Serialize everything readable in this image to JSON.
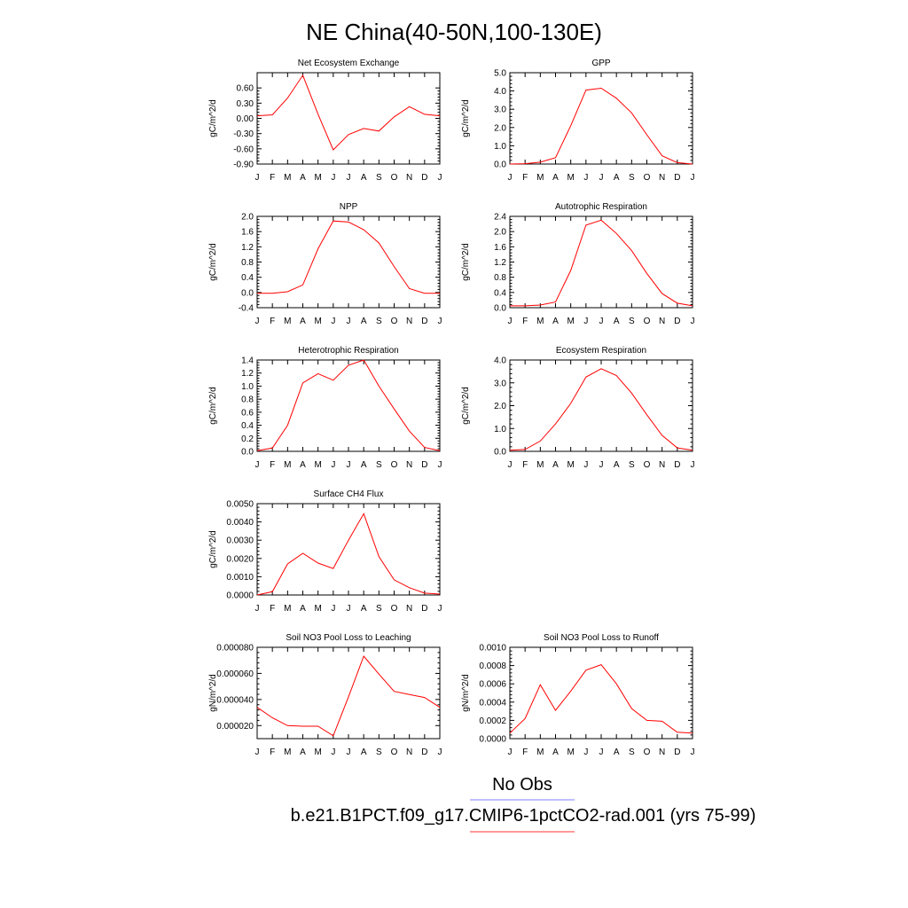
{
  "title": "NE China(40-50N,100-130E)",
  "legend": {
    "obs_label": "No Obs",
    "obs_color": "#7f7fff",
    "model_label": "b.e21.B1PCT.f09_g17.CMIP6-1pctCO2-rad.001 (yrs 75-99)",
    "model_color": "#ff3333"
  },
  "months": [
    "J",
    "F",
    "M",
    "A",
    "M",
    "J",
    "J",
    "A",
    "S",
    "O",
    "N",
    "D",
    "J"
  ],
  "chart_data": [
    {
      "type": "line",
      "title": "Net Ecosystem Exchange",
      "ylabel": "gC/m^2/d",
      "ylim": [
        -0.9,
        0.9
      ],
      "yticks": [
        -0.9,
        -0.6,
        -0.3,
        0.0,
        0.3,
        0.6
      ],
      "yticklabels": [
        "-0.90",
        "-0.60",
        "-0.30",
        "0.00",
        "0.30",
        "0.60"
      ],
      "series": [
        {
          "values": [
            0.05,
            0.07,
            0.4,
            0.85,
            0.08,
            -0.62,
            -0.32,
            -0.2,
            -0.25,
            0.03,
            0.23,
            0.08,
            0.05
          ]
        }
      ]
    },
    {
      "type": "line",
      "title": "GPP",
      "ylabel": "gC/m^2/d",
      "ylim": [
        0.0,
        5.0
      ],
      "yticks": [
        0.0,
        1.0,
        2.0,
        3.0,
        4.0,
        5.0
      ],
      "yticklabels": [
        "0.0",
        "1.0",
        "2.0",
        "3.0",
        "4.0",
        "5.0"
      ],
      "series": [
        {
          "values": [
            0.0,
            0.02,
            0.1,
            0.35,
            2.1,
            4.05,
            4.15,
            3.6,
            2.8,
            1.6,
            0.45,
            0.08,
            0.0
          ]
        }
      ]
    },
    {
      "type": "line",
      "title": "NPP",
      "ylabel": "gC/m^2/d",
      "ylim": [
        -0.4,
        2.0
      ],
      "yticks": [
        -0.4,
        0.0,
        0.4,
        0.8,
        1.2,
        1.6,
        2.0
      ],
      "yticklabels": [
        "-0.4",
        "0.0",
        "0.4",
        "0.8",
        "1.2",
        "1.6",
        "2.0"
      ],
      "series": [
        {
          "values": [
            -0.02,
            -0.02,
            0.02,
            0.2,
            1.15,
            1.88,
            1.85,
            1.65,
            1.3,
            0.68,
            0.1,
            -0.02,
            -0.02
          ]
        }
      ]
    },
    {
      "type": "line",
      "title": "Autotrophic Respiration",
      "ylabel": "gC/m^2/d",
      "ylim": [
        0.0,
        2.4
      ],
      "yticks": [
        0.0,
        0.4,
        0.8,
        1.2,
        1.6,
        2.0,
        2.4
      ],
      "yticklabels": [
        "0.0",
        "0.4",
        "0.8",
        "1.2",
        "1.6",
        "2.0",
        "2.4"
      ],
      "series": [
        {
          "values": [
            0.05,
            0.05,
            0.07,
            0.15,
            0.98,
            2.17,
            2.3,
            1.95,
            1.5,
            0.9,
            0.37,
            0.12,
            0.05
          ]
        }
      ]
    },
    {
      "type": "line",
      "title": "Heterotrophic Respiration",
      "ylabel": "gC/m^2/d",
      "ylim": [
        0.0,
        1.4
      ],
      "yticks": [
        0.0,
        0.2,
        0.4,
        0.6,
        0.8,
        1.0,
        1.2,
        1.4
      ],
      "yticklabels": [
        "0.0",
        "0.2",
        "0.4",
        "0.6",
        "0.8",
        "1.0",
        "1.2",
        "1.4"
      ],
      "series": [
        {
          "values": [
            0.01,
            0.05,
            0.4,
            1.05,
            1.19,
            1.09,
            1.32,
            1.4,
            1.0,
            0.65,
            0.31,
            0.06,
            0.01
          ]
        }
      ]
    },
    {
      "type": "line",
      "title": "Ecosystem Respiration",
      "ylabel": "gC/m^2/d",
      "ylim": [
        0.0,
        4.0
      ],
      "yticks": [
        0.0,
        1.0,
        2.0,
        3.0,
        4.0
      ],
      "yticklabels": [
        "0.0",
        "1.0",
        "2.0",
        "3.0",
        "4.0"
      ],
      "series": [
        {
          "values": [
            0.05,
            0.08,
            0.45,
            1.2,
            2.1,
            3.25,
            3.62,
            3.32,
            2.55,
            1.6,
            0.7,
            0.15,
            0.05
          ]
        }
      ]
    },
    {
      "type": "line",
      "title": "Surface CH4 Flux",
      "ylabel": "gC/m^2/d",
      "ylim": [
        0.0,
        0.005
      ],
      "yticks": [
        0.0,
        0.001,
        0.002,
        0.003,
        0.004,
        0.005
      ],
      "yticklabels": [
        "0.0000",
        "0.0010",
        "0.0020",
        "0.0030",
        "0.0040",
        "0.0050"
      ],
      "series": [
        {
          "values": [
            0.0,
            0.00018,
            0.0017,
            0.00228,
            0.00175,
            0.00145,
            0.003,
            0.00445,
            0.0021,
            0.00083,
            0.0004,
            0.0001,
            5e-05
          ]
        }
      ]
    },
    {
      "type": "line",
      "title": "Soil NO3 Pool Loss to Leaching",
      "ylabel": "gN/m^2/d",
      "ylim": [
        1e-05,
        8e-05
      ],
      "yticks": [
        2e-05,
        4e-05,
        6e-05,
        8e-05
      ],
      "yticklabels": [
        "0.000020",
        "0.000040",
        "0.000060",
        "0.000080"
      ],
      "series": [
        {
          "values": [
            3.4e-05,
            2.6e-05,
            2e-05,
            1.95e-05,
            1.95e-05,
            1.22e-05,
            4.2e-05,
            7.32e-05,
            5.95e-05,
            4.62e-05,
            4.38e-05,
            4.15e-05,
            3.4e-05
          ]
        }
      ]
    },
    {
      "type": "line",
      "title": "Soil NO3 Pool Loss to Runoff",
      "ylabel": "gN/m^2/d",
      "ylim": [
        0.0,
        0.001
      ],
      "yticks": [
        0.0,
        0.0002,
        0.0004,
        0.0006,
        0.0008,
        0.001
      ],
      "yticklabels": [
        "0.0000",
        "0.0002",
        "0.0004",
        "0.0006",
        "0.0008",
        "0.0010"
      ],
      "series": [
        {
          "values": [
            6e-05,
            0.00022,
            0.00059,
            0.00031,
            0.00052,
            0.00075,
            0.00081,
            0.0006,
            0.00033,
            0.0002,
            0.00019,
            7e-05,
            6e-05
          ]
        }
      ]
    }
  ]
}
